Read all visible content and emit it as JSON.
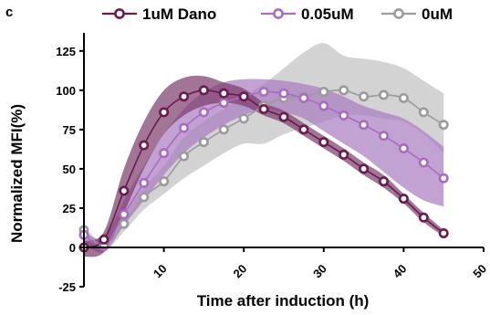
{
  "panel_label": "c",
  "chart_data": {
    "type": "line",
    "xlabel": "Time after induction (h)",
    "ylabel": "Normalized MFI(%)",
    "xlim": [
      0,
      50
    ],
    "ylim": [
      -25,
      140
    ],
    "xticks": [
      "10",
      "20",
      "30",
      "40",
      "50"
    ],
    "yticks": [
      "-25",
      "0",
      "25",
      "50",
      "75",
      "100",
      "125"
    ],
    "legend_position": "top",
    "series": [
      {
        "name": "1uM Dano",
        "color": "#6b1a4e",
        "band_color": "#7a3a6a",
        "x": [
          0,
          2.5,
          5,
          7.5,
          10,
          12.5,
          15,
          17.5,
          20,
          22.5,
          25,
          27.5,
          30,
          32.5,
          35,
          37.5,
          40,
          42.5,
          45
        ],
        "y": [
          0,
          5,
          36,
          65,
          86,
          96,
          100,
          98,
          96,
          88,
          83,
          75,
          67,
          59,
          50,
          42,
          31,
          19,
          9
        ],
        "lower": [
          -6,
          -3,
          22,
          50,
          72,
          84,
          90,
          92,
          90,
          84,
          79,
          71,
          63,
          55,
          46,
          38,
          28,
          16,
          7
        ],
        "upper": [
          4,
          10,
          50,
          80,
          100,
          108,
          109,
          105,
          101,
          92,
          87,
          79,
          71,
          63,
          54,
          46,
          34,
          22,
          11
        ]
      },
      {
        "name": "0.05uM",
        "color": "#a86bbf",
        "band_color": "#a87bbf",
        "x": [
          0,
          2.5,
          5,
          7.5,
          10,
          12.5,
          15,
          17.5,
          20,
          22.5,
          25,
          27.5,
          30,
          32.5,
          35,
          37.5,
          40,
          42.5,
          45
        ],
        "y": [
          8,
          1,
          21,
          41,
          60,
          76,
          86,
          92,
          96,
          99,
          98,
          95,
          90,
          84,
          78,
          71,
          63,
          54,
          44
        ],
        "lower": [
          2,
          -3,
          14,
          30,
          46,
          60,
          70,
          78,
          84,
          88,
          86,
          82,
          74,
          66,
          58,
          48,
          38,
          30,
          26
        ],
        "upper": [
          10,
          6,
          30,
          52,
          72,
          88,
          99,
          105,
          107,
          107,
          106,
          104,
          101,
          96,
          90,
          86,
          82,
          74,
          64
        ]
      },
      {
        "name": "0uM",
        "color": "#9a9a9a",
        "band_color": "#c4c4c4",
        "x": [
          0,
          2.5,
          5,
          7.5,
          10,
          12.5,
          15,
          17.5,
          20,
          22.5,
          25,
          27.5,
          30,
          32.5,
          35,
          37.5,
          40,
          42.5,
          45
        ],
        "y": [
          11,
          1,
          15,
          32,
          42,
          58,
          67,
          75,
          82,
          90,
          95,
          96,
          99,
          100,
          96,
          97,
          95,
          86,
          78
        ],
        "lower": [
          8,
          -2,
          10,
          24,
          34,
          44,
          52,
          60,
          66,
          66,
          72,
          76,
          80,
          84,
          84,
          82,
          80,
          72,
          60
        ],
        "upper": [
          13,
          4,
          20,
          38,
          52,
          70,
          80,
          88,
          96,
          104,
          114,
          124,
          130,
          122,
          120,
          118,
          114,
          106,
          98
        ]
      }
    ]
  }
}
